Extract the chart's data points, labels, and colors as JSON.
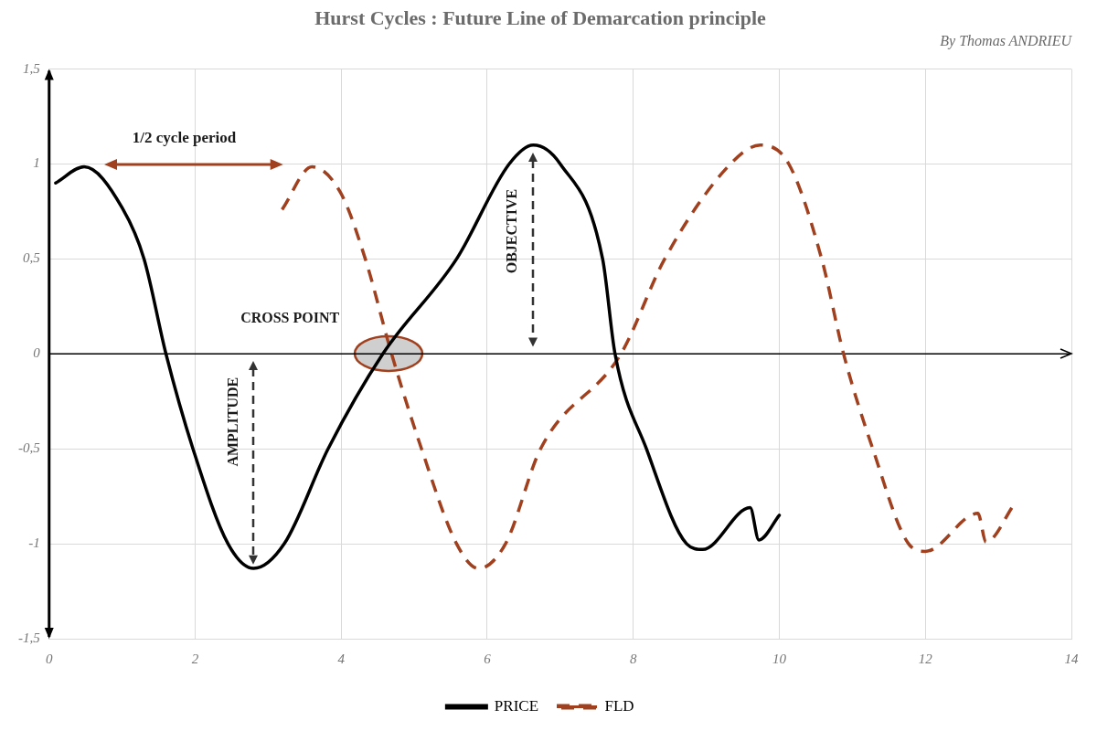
{
  "chart_data": {
    "type": "line",
    "title": "Hurst Cycles : Future Line of Demarcation principle",
    "subtitle": "By Thomas ANDRIEU",
    "series": [
      {
        "name": "PRICE",
        "color": "#000000",
        "line_style": "solid",
        "x": [
          0.09,
          0.48,
          1.0,
          1.3,
          1.6,
          1.97,
          2.45,
          2.8,
          3.22,
          3.82,
          4.57,
          5.58,
          6.3,
          6.63,
          7.0,
          7.58,
          7.75,
          8.18,
          8.73,
          8.95,
          9.6,
          9.72,
          10.0
        ],
        "values": [
          0.9,
          0.985,
          0.77,
          0.5,
          0,
          -0.5,
          -1,
          -1.13,
          -1,
          -0.5,
          0,
          0.5,
          1,
          1.1,
          1,
          0.5,
          0,
          -0.5,
          -1,
          -1.03,
          -0.81,
          -0.98,
          -0.85
        ]
      },
      {
        "name": "FLD",
        "color": "#a0401e",
        "line_style": "dashed",
        "x": [
          3.19,
          3.6,
          3.99,
          4.33,
          4.69,
          5.1,
          5.58,
          5.88,
          6.25,
          6.73,
          7.83,
          8.43,
          9.33,
          9.74,
          10.13,
          10.58,
          10.88,
          11.28,
          11.77,
          12.0,
          12.72,
          12.83,
          13.22
        ],
        "values": [
          0.76,
          0.985,
          0.85,
          0.5,
          0,
          -0.5,
          -1,
          -1.13,
          -1,
          -0.5,
          0,
          0.5,
          1,
          1.1,
          1,
          0.5,
          0,
          -0.5,
          -1,
          -1.04,
          -0.84,
          -0.99,
          -0.79
        ]
      }
    ],
    "xlim": [
      0,
      14
    ],
    "xticks": [
      0,
      2,
      4,
      6,
      8,
      10,
      12,
      14
    ],
    "ylim": [
      -1.5,
      1.5
    ],
    "yticks": [
      {
        "value": -1.5,
        "label": "-1,5"
      },
      -1,
      {
        "value": -0.5,
        "label": "-0,5"
      },
      0,
      {
        "value": 0.5,
        "label": "0,5"
      },
      1,
      {
        "value": 1.5,
        "label": "1,5"
      }
    ],
    "grid": true,
    "legend": "bottom",
    "marker": "none",
    "ref_lines": [
      {
        "axis": "y",
        "value": 0,
        "color": "#000000"
      }
    ],
    "annotations": [
      "1/2 cycle period",
      "CROSS POINT",
      "AMPLITUDE",
      "OBJECTIVE"
    ]
  }
}
